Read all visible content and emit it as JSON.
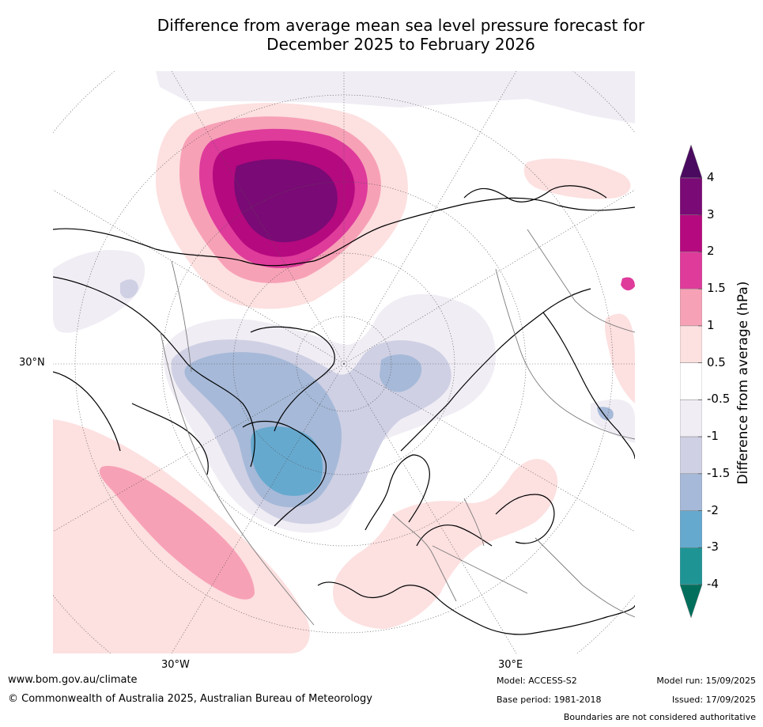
{
  "title": {
    "line1": "Difference from average mean sea level pressure forecast for",
    "line2": "December 2025 to February 2026"
  },
  "map": {
    "projection": "north polar stereographic",
    "lat_labels": {
      "lat30n": "30°N",
      "lon30w": "30°W",
      "lon30e": "30°E"
    },
    "colors": {
      "ocean_bg": "#ffffff",
      "coast": "#000000",
      "borders": "#7a7a7a",
      "grid": "#555555"
    }
  },
  "colorbar": {
    "title": "Difference from average (hPa)",
    "ticks": [
      "4",
      "3",
      "2",
      "1.5",
      "1",
      "0.5",
      "-0.5",
      "-1",
      "-1.5",
      "-2",
      "-3",
      "-4"
    ],
    "bins": [
      {
        "from": 4,
        "to": null,
        "color": "#4a0a60"
      },
      {
        "from": 3,
        "to": 4,
        "color": "#7a0a75"
      },
      {
        "from": 2,
        "to": 3,
        "color": "#b5097f"
      },
      {
        "from": 1.5,
        "to": 2,
        "color": "#de3b9b"
      },
      {
        "from": 1,
        "to": 1.5,
        "color": "#f7a1b7"
      },
      {
        "from": 0.5,
        "to": 1,
        "color": "#fde0e0"
      },
      {
        "from": -0.5,
        "to": 0.5,
        "color": "#ffffff"
      },
      {
        "from": -1,
        "to": -0.5,
        "color": "#f0edf4"
      },
      {
        "from": -1.5,
        "to": -1,
        "color": "#cfd0e4"
      },
      {
        "from": -2,
        "to": -1.5,
        "color": "#a6b9d8"
      },
      {
        "from": -3,
        "to": -2,
        "color": "#66a9cf"
      },
      {
        "from": -4,
        "to": -3,
        "color": "#1f9495"
      },
      {
        "from": null,
        "to": -4,
        "color": "#016f5c"
      }
    ]
  },
  "footer": {
    "url": "www.bom.gov.au/climate",
    "copyright": "© Commonwealth of Australia 2025, Australian Bureau of Meteorology",
    "model": "Model: ACCESS-S2",
    "base_period": "Base period: 1981-2018",
    "model_run": "Model run: 15/09/2025",
    "issued": "Issued: 17/09/2025",
    "disclaimer": "Boundaries are not considered authoritative"
  }
}
